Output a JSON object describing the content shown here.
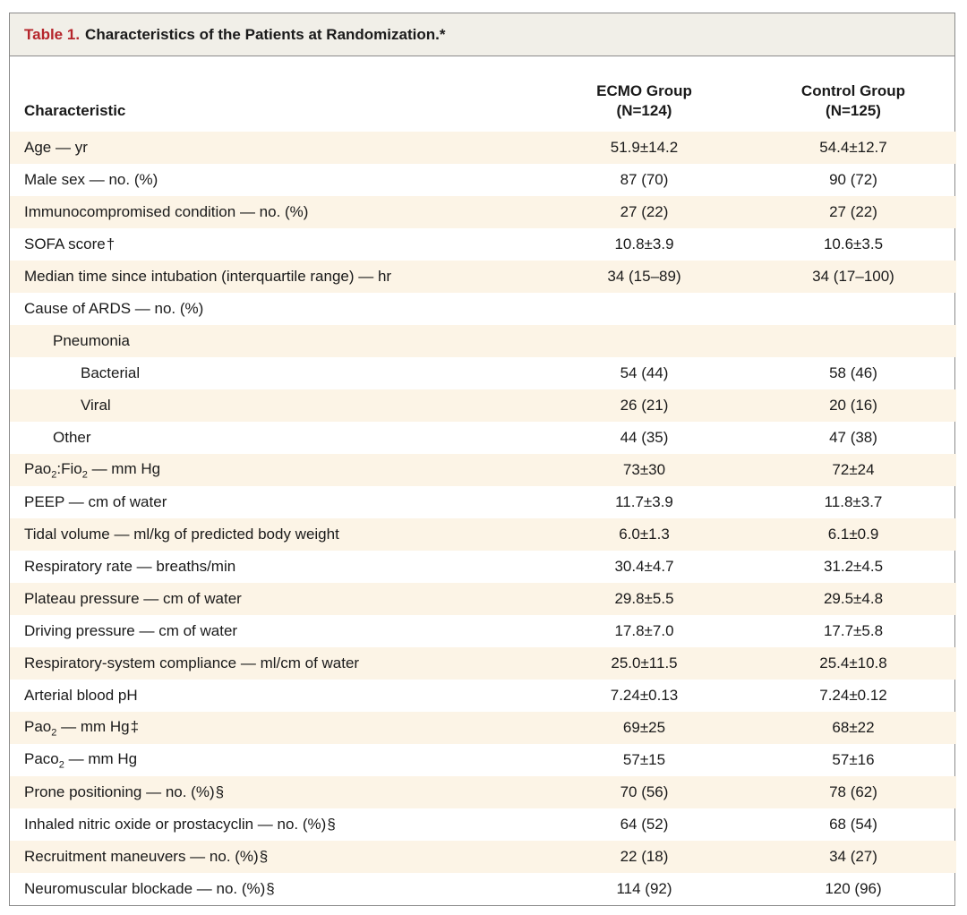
{
  "table": {
    "caption_label": "Table 1.",
    "caption_text": "Characteristics of the Patients at Randomization.",
    "caption_mark": "*",
    "headers": {
      "characteristic": "Characteristic",
      "ecmo_name": "ECMO Group",
      "ecmo_n": "(N=124)",
      "control_name": "Control Group",
      "control_n": "(N=125)"
    },
    "rows": [
      {
        "label": "Age — yr",
        "ecmo": "51.9±14.2",
        "control": "54.4±12.7"
      },
      {
        "label": "Male sex — no. (%)",
        "ecmo": "87 (70)",
        "control": "90 (72)"
      },
      {
        "label": "Immunocompromised condition — no. (%)",
        "ecmo": "27 (22)",
        "control": "27 (22)"
      },
      {
        "label": "SOFA score",
        "mark": "†",
        "ecmo": "10.8±3.9",
        "control": "10.6±3.5"
      },
      {
        "label": "Median time since intubation (interquartile range) — hr",
        "ecmo": "34 (15–89)",
        "control": "34 (17–100)"
      },
      {
        "label": "Cause of ARDS — no. (%)",
        "ecmo": "",
        "control": ""
      },
      {
        "label": "Pneumonia",
        "ecmo": "",
        "control": ""
      },
      {
        "label": "Bacterial",
        "ecmo": "54 (44)",
        "control": "58 (46)"
      },
      {
        "label": "Viral",
        "ecmo": "26 (21)",
        "control": "20 (16)"
      },
      {
        "label": "Other",
        "ecmo": "44 (35)",
        "control": "47 (38)"
      },
      {
        "label_a": "Pao",
        "sub_a": "2",
        "label_b": ":Fio",
        "sub_b": "2",
        "label_c": " — mm Hg",
        "ecmo": "73±30",
        "control": "72±24"
      },
      {
        "label": "PEEP — cm of water",
        "ecmo": "11.7±3.9",
        "control": "11.8±3.7"
      },
      {
        "label": "Tidal volume — ml/kg of predicted body weight",
        "ecmo": "6.0±1.3",
        "control": "6.1±0.9"
      },
      {
        "label": "Respiratory rate — breaths/min",
        "ecmo": "30.4±4.7",
        "control": "31.2±4.5"
      },
      {
        "label": "Plateau pressure — cm of water",
        "ecmo": "29.8±5.5",
        "control": "29.5±4.8"
      },
      {
        "label": "Driving pressure — cm of water",
        "ecmo": "17.8±7.0",
        "control": "17.7±5.8"
      },
      {
        "label": "Respiratory-system compliance — ml/cm of water",
        "ecmo": "25.0±11.5",
        "control": "25.4±10.8"
      },
      {
        "label": "Arterial blood pH",
        "ecmo": "7.24±0.13",
        "control": "7.24±0.12"
      },
      {
        "label_a": "Pao",
        "sub_a": "2",
        "label_b": " — mm Hg",
        "mark": "‡",
        "ecmo": "69±25",
        "control": "68±22"
      },
      {
        "label_a": "Paco",
        "sub_a": "2",
        "label_b": " — mm Hg",
        "ecmo": "57±15",
        "control": "57±16"
      },
      {
        "label": "Prone positioning — no. (%)",
        "mark": "§",
        "ecmo": "70 (56)",
        "control": "78 (62)"
      },
      {
        "label": "Inhaled nitric oxide or prostacyclin — no. (%)",
        "mark": "§",
        "ecmo": "64 (52)",
        "control": "68 (54)"
      },
      {
        "label": "Recruitment maneuvers — no. (%)",
        "mark": "§",
        "ecmo": "22 (18)",
        "control": "34 (27)"
      },
      {
        "label": "Neuromuscular blockade — no. (%)",
        "mark": "§",
        "ecmo": "114 (92)",
        "control": "120 (96)"
      }
    ]
  }
}
